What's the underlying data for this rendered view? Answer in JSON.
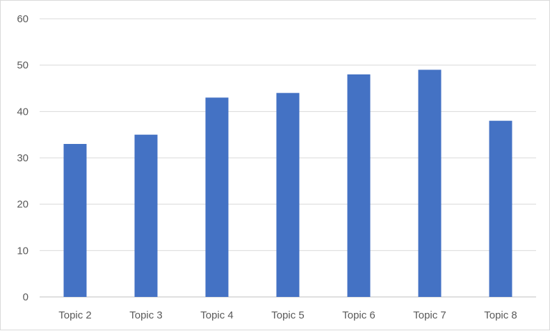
{
  "chart_data": {
    "type": "bar",
    "title": "",
    "xlabel": "",
    "ylabel": "",
    "categories": [
      "Topic 2",
      "Topic 3",
      "Topic 4",
      "Topic 5",
      "Topic 6",
      "Topic 7",
      "Topic 8"
    ],
    "values": [
      33,
      35,
      43,
      44,
      48,
      49,
      38
    ],
    "ylim": [
      0,
      60
    ],
    "yticks": [
      0,
      10,
      20,
      30,
      40,
      50,
      60
    ],
    "grid": "horizontal",
    "legend": "none",
    "colors": {
      "bar": "#4472c4",
      "grid": "#d9d9d9",
      "text": "#595959",
      "axis": "#bfbfbf"
    }
  }
}
